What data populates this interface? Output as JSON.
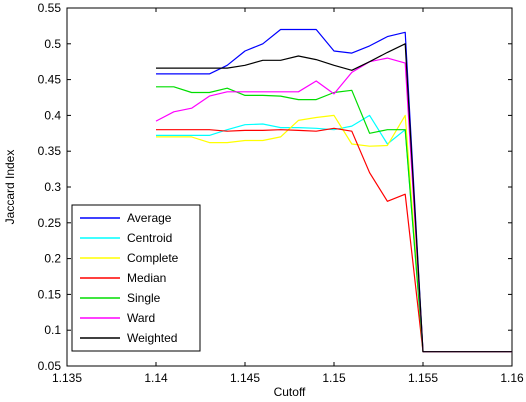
{
  "chart_data": {
    "type": "line",
    "xlabel": "Cutoff",
    "ylabel": "Jaccard Index",
    "xlim": [
      1.135,
      1.16
    ],
    "ylim": [
      0.05,
      0.55
    ],
    "x_ticks": [
      "1.135",
      "1.14",
      "1.145",
      "1.15",
      "1.155",
      "1.16"
    ],
    "y_ticks": [
      "0.05",
      "0.1",
      "0.15",
      "0.2",
      "0.25",
      "0.3",
      "0.35",
      "0.4",
      "0.45",
      "0.5",
      "0.55"
    ],
    "x_tick_values": [
      1.135,
      1.14,
      1.145,
      1.15,
      1.155,
      1.16
    ],
    "y_tick_values": [
      0.05,
      0.1,
      0.15,
      0.2,
      0.25,
      0.3,
      0.35,
      0.4,
      0.45,
      0.5,
      0.55
    ],
    "legend_placement": "bottom-left",
    "grid": false,
    "series": [
      {
        "name": "Average",
        "color": "#0000ff",
        "x": [
          1.14,
          1.141,
          1.142,
          1.143,
          1.144,
          1.145,
          1.146,
          1.147,
          1.148,
          1.149,
          1.15,
          1.151,
          1.152,
          1.153,
          1.154,
          1.155,
          1.156,
          1.16
        ],
        "y": [
          0.458,
          0.458,
          0.458,
          0.458,
          0.47,
          0.49,
          0.5,
          0.52,
          0.52,
          0.52,
          0.49,
          0.487,
          0.497,
          0.51,
          0.516,
          0.07,
          0.07,
          0.07
        ]
      },
      {
        "name": "Centroid",
        "color": "#00ffff",
        "x": [
          1.14,
          1.141,
          1.142,
          1.143,
          1.144,
          1.145,
          1.146,
          1.147,
          1.148,
          1.149,
          1.15,
          1.151,
          1.152,
          1.153,
          1.154,
          1.155,
          1.156,
          1.16
        ],
        "y": [
          0.372,
          0.372,
          0.372,
          0.372,
          0.38,
          0.387,
          0.388,
          0.383,
          0.383,
          0.382,
          0.38,
          0.385,
          0.4,
          0.36,
          0.38,
          0.07,
          0.07,
          0.07
        ]
      },
      {
        "name": "Complete",
        "color": "#ffff00",
        "x": [
          1.14,
          1.141,
          1.142,
          1.143,
          1.144,
          1.145,
          1.146,
          1.147,
          1.148,
          1.149,
          1.15,
          1.151,
          1.152,
          1.153,
          1.154,
          1.155,
          1.156,
          1.16
        ],
        "y": [
          0.37,
          0.37,
          0.37,
          0.362,
          0.362,
          0.365,
          0.365,
          0.37,
          0.393,
          0.397,
          0.4,
          0.36,
          0.357,
          0.358,
          0.4,
          0.07,
          0.07,
          0.07
        ]
      },
      {
        "name": "Median",
        "color": "#ff0000",
        "x": [
          1.14,
          1.141,
          1.142,
          1.143,
          1.144,
          1.145,
          1.146,
          1.147,
          1.148,
          1.149,
          1.15,
          1.151,
          1.152,
          1.153,
          1.154,
          1.155,
          1.156,
          1.16
        ],
        "y": [
          0.38,
          0.38,
          0.38,
          0.38,
          0.378,
          0.379,
          0.379,
          0.38,
          0.379,
          0.378,
          0.382,
          0.378,
          0.32,
          0.28,
          0.29,
          0.07,
          0.07,
          0.07
        ]
      },
      {
        "name": "Single",
        "color": "#00dd00",
        "x": [
          1.14,
          1.141,
          1.142,
          1.143,
          1.144,
          1.145,
          1.146,
          1.147,
          1.148,
          1.149,
          1.15,
          1.151,
          1.152,
          1.153,
          1.154,
          1.155,
          1.156,
          1.16
        ],
        "y": [
          0.44,
          0.44,
          0.432,
          0.432,
          0.438,
          0.428,
          0.428,
          0.427,
          0.422,
          0.422,
          0.432,
          0.435,
          0.375,
          0.38,
          0.38,
          0.07,
          0.07,
          0.07
        ]
      },
      {
        "name": "Ward",
        "color": "#ff00ff",
        "x": [
          1.14,
          1.141,
          1.142,
          1.143,
          1.144,
          1.145,
          1.146,
          1.147,
          1.148,
          1.149,
          1.15,
          1.151,
          1.152,
          1.153,
          1.154,
          1.155,
          1.156,
          1.16
        ],
        "y": [
          0.392,
          0.405,
          0.41,
          0.427,
          0.433,
          0.433,
          0.433,
          0.433,
          0.433,
          0.448,
          0.43,
          0.46,
          0.475,
          0.48,
          0.473,
          0.07,
          0.07,
          0.07
        ]
      },
      {
        "name": "Weighted",
        "color": "#000000",
        "x": [
          1.14,
          1.141,
          1.142,
          1.143,
          1.144,
          1.145,
          1.146,
          1.147,
          1.148,
          1.149,
          1.15,
          1.151,
          1.152,
          1.153,
          1.154,
          1.155,
          1.156,
          1.16
        ],
        "y": [
          0.466,
          0.466,
          0.466,
          0.466,
          0.466,
          0.47,
          0.477,
          0.477,
          0.483,
          0.478,
          0.47,
          0.463,
          0.475,
          0.488,
          0.5,
          0.07,
          0.07,
          0.07
        ]
      }
    ]
  }
}
